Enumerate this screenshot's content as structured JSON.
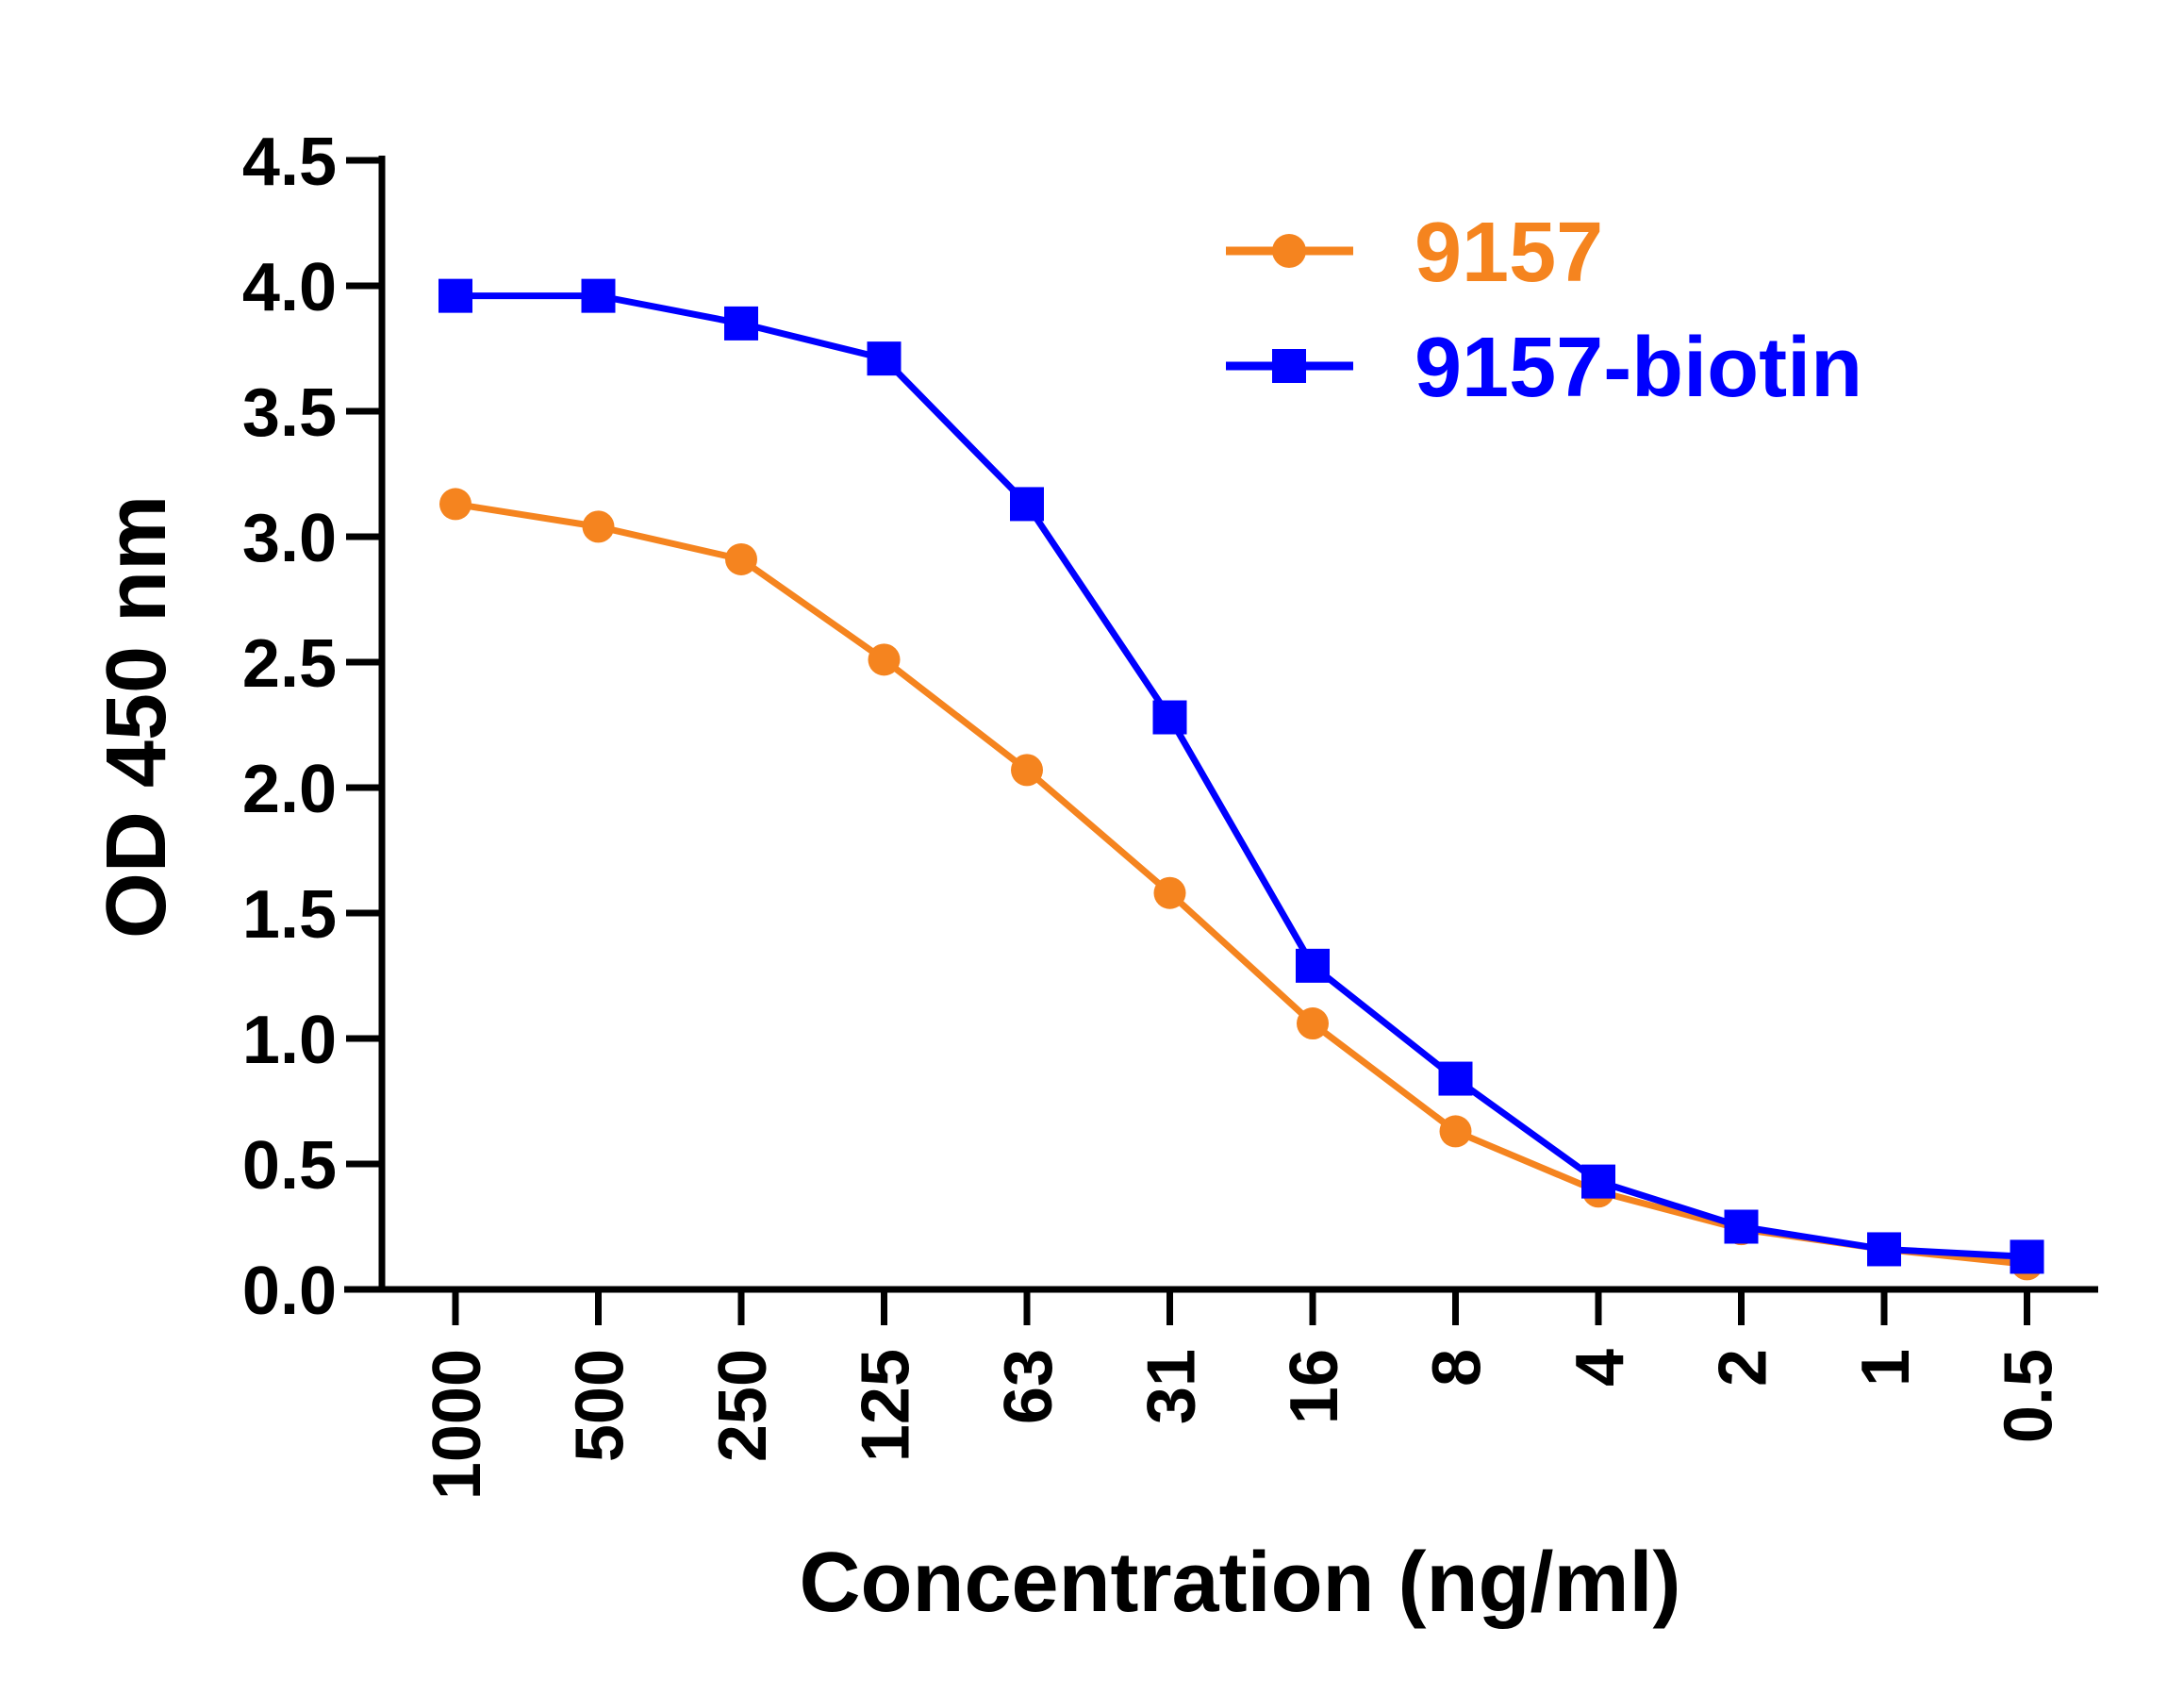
{
  "chart_data": {
    "type": "line",
    "xlabel": "Concentration (ng/ml)",
    "ylabel": "OD 450 nm",
    "categories": [
      "1000",
      "500",
      "250",
      "125",
      "63",
      "31",
      "16",
      "8",
      "4",
      "2",
      "1",
      "0.5"
    ],
    "ylim": [
      0,
      4.5
    ],
    "yticks": [
      "0.0",
      "0.5",
      "1.0",
      "1.5",
      "2.0",
      "2.5",
      "3.0",
      "3.5",
      "4.0",
      "4.5"
    ],
    "grid": false,
    "legend_position": "top-right",
    "series": [
      {
        "name": "9157",
        "color": "#F5841F",
        "marker": "circle",
        "values": [
          3.13,
          3.04,
          2.91,
          2.51,
          2.07,
          1.58,
          1.06,
          0.63,
          0.39,
          0.24,
          0.16,
          0.1
        ]
      },
      {
        "name": "9157-biotin",
        "color": "#0000FF",
        "marker": "square",
        "values": [
          3.96,
          3.96,
          3.85,
          3.71,
          3.13,
          2.28,
          1.29,
          0.84,
          0.43,
          0.25,
          0.16,
          0.13
        ]
      }
    ]
  }
}
